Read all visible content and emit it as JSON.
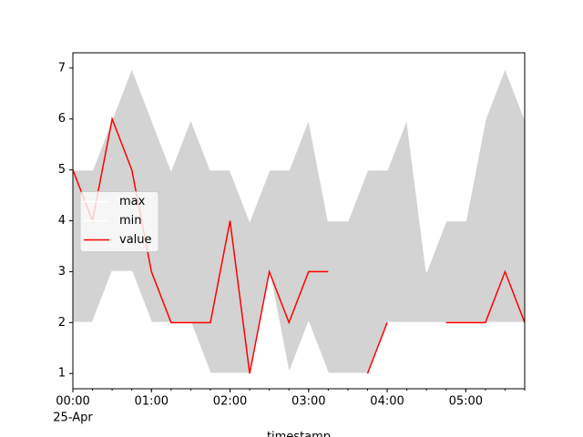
{
  "chart_data": {
    "type": "line",
    "x": [
      "00:00",
      "00:15",
      "00:30",
      "00:45",
      "01:00",
      "01:15",
      "01:30",
      "01:45",
      "02:00",
      "02:15",
      "02:30",
      "02:45",
      "03:00",
      "03:15",
      "03:30",
      "03:45",
      "04:00",
      "04:15",
      "04:30",
      "04:45",
      "05:00",
      "05:15",
      "05:30",
      "05:45"
    ],
    "xlabel": "timestamp",
    "xticks": [
      "00:00",
      "01:00",
      "02:00",
      "03:00",
      "04:00",
      "05:00"
    ],
    "xtick_date": "25-Apr",
    "ylim": [
      0.7,
      7.3
    ],
    "yticks": [
      1,
      2,
      3,
      4,
      5,
      6,
      7
    ],
    "fill_between": {
      "color": "#d3d3d3"
    },
    "legend": "center left",
    "series": [
      {
        "name": "max",
        "color": "#ffffff",
        "values": [
          5,
          5,
          6,
          7,
          6,
          5,
          6,
          5,
          5,
          4,
          5,
          5,
          6,
          4,
          4,
          5,
          5,
          6,
          3,
          4,
          4,
          6,
          7,
          6
        ]
      },
      {
        "name": "min",
        "color": "#ffffff",
        "values": [
          2,
          2,
          3,
          3,
          2,
          2,
          2,
          1,
          1,
          1,
          3,
          1,
          2,
          1,
          1,
          1,
          2,
          2,
          2,
          2,
          2,
          2,
          2,
          2
        ]
      },
      {
        "name": "value",
        "color": "#ff0000",
        "values": [
          5,
          4,
          6,
          5,
          3,
          2,
          2,
          2,
          4,
          1,
          3,
          2,
          3,
          3,
          null,
          1,
          2,
          null,
          null,
          2,
          2,
          2,
          3,
          2
        ]
      }
    ]
  }
}
